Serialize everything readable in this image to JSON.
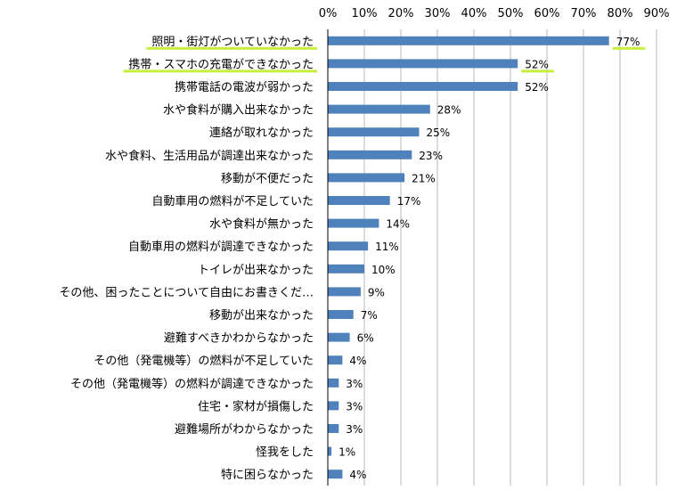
{
  "chart_data": {
    "type": "bar",
    "orientation": "horizontal",
    "title": "",
    "xlabel": "",
    "ylabel": "",
    "xlim": [
      0,
      90
    ],
    "grid": true,
    "legend": "none",
    "tick_labels": [
      "0%",
      "10%",
      "20%",
      "30%",
      "40%",
      "50%",
      "60%",
      "70%",
      "80%",
      "90%"
    ],
    "categories": [
      "照明・街灯がついていなかった",
      "携帯・スマホの充電ができなかった",
      "携帯電話の電波が弱かった",
      "水や食料が購入出来なかった",
      "連絡が取れなかった",
      "水や食料、生活用品が調達出来なかった",
      "移動が不便だった",
      "自動車用の燃料が不足していた",
      "水や食料が無かった",
      "自動車用の燃料が調達できなかった",
      "トイレが出来なかった",
      "その他、困ったことについて自由にお書きくだ…",
      "移動が出来なかった",
      "避難すべきかわからなかった",
      "その他（発電機等）の燃料が不足していた",
      "その他（発電機等）の燃料が調達できなかった",
      "住宅・家材が損傷した",
      "避難場所がわからなかった",
      "怪我をした",
      "特に困らなかった"
    ],
    "values": [
      77,
      52,
      52,
      28,
      25,
      23,
      21,
      17,
      14,
      11,
      10,
      9,
      7,
      6,
      4,
      3,
      3,
      3,
      1,
      4
    ],
    "data_labels": [
      "77%",
      "52%",
      "52%",
      "28%",
      "25%",
      "23%",
      "21%",
      "17%",
      "14%",
      "11%",
      "10%",
      "9%",
      "7%",
      "6%",
      "4%",
      "3%",
      "3%",
      "3%",
      "1%",
      "4%"
    ],
    "highlighted_categories": [
      0,
      1
    ],
    "highlighted_value_labels": [
      0,
      1
    ],
    "colors": {
      "bar": "#4f81bd",
      "highlight": "#c6ef3c",
      "grid": "#b8b8b8"
    }
  }
}
